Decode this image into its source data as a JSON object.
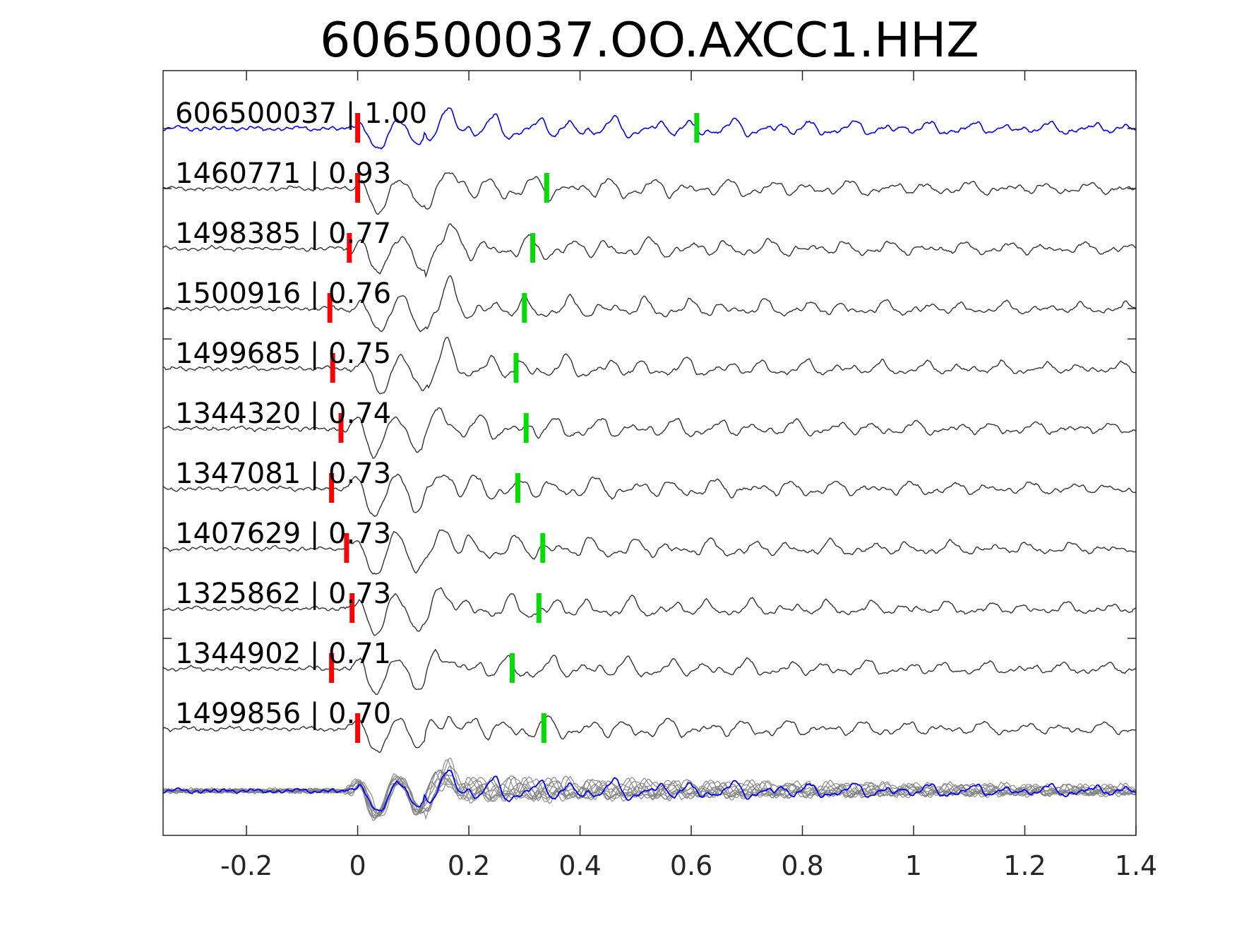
{
  "chart_data": {
    "type": "line",
    "title": "606500037.OO.AXCC1.HHZ",
    "xlabel": "",
    "ylabel": "",
    "xlim": [
      -0.35,
      1.4
    ],
    "xticks": [
      -0.2,
      0,
      0.2,
      0.4,
      0.6,
      0.8,
      1,
      1.2,
      1.4
    ],
    "xtick_labels": [
      "-0.2",
      "0",
      "0.2",
      "0.4",
      "0.6",
      "0.8",
      "1",
      "1.2",
      "1.4"
    ],
    "grid": false,
    "legend": "none",
    "colors": {
      "template": "#0000ff",
      "match": "#333333",
      "stack": "#7f7f7f",
      "p_pick": "#ff0000",
      "s_pick": "#00dd00",
      "axis": "#262626"
    },
    "traces": [
      {
        "label": "606500037 | 1.00",
        "event_id": "606500037",
        "cc": 1.0,
        "p_pick": 0.0,
        "s_pick": 0.61,
        "template": true
      },
      {
        "label": "1460771 | 0.93",
        "event_id": "1460771",
        "cc": 0.93,
        "p_pick": 0.0,
        "s_pick": 0.34
      },
      {
        "label": "1498385 | 0.77",
        "event_id": "1498385",
        "cc": 0.77,
        "p_pick": -0.015,
        "s_pick": 0.315
      },
      {
        "label": "1500916 | 0.76",
        "event_id": "1500916",
        "cc": 0.76,
        "p_pick": -0.05,
        "s_pick": 0.3
      },
      {
        "label": "1499685 | 0.75",
        "event_id": "1499685",
        "cc": 0.75,
        "p_pick": -0.045,
        "s_pick": 0.285
      },
      {
        "label": "1344320 | 0.74",
        "event_id": "1344320",
        "cc": 0.74,
        "p_pick": -0.03,
        "s_pick": 0.303
      },
      {
        "label": "1347081 | 0.73",
        "event_id": "1347081",
        "cc": 0.73,
        "p_pick": -0.047,
        "s_pick": 0.288
      },
      {
        "label": "1407629 | 0.73",
        "event_id": "1407629",
        "cc": 0.73,
        "p_pick": -0.02,
        "s_pick": 0.333
      },
      {
        "label": "1325862 | 0.73",
        "event_id": "1325862",
        "cc": 0.73,
        "p_pick": -0.01,
        "s_pick": 0.326
      },
      {
        "label": "1344902 | 0.71",
        "event_id": "1344902",
        "cc": 0.71,
        "p_pick": -0.047,
        "s_pick": 0.278
      },
      {
        "label": "1499856 | 0.70",
        "event_id": "1499856",
        "cc": 0.7,
        "p_pick": 0.0,
        "s_pick": 0.335
      }
    ],
    "stack": {
      "overlaid_traces": 11
    }
  }
}
